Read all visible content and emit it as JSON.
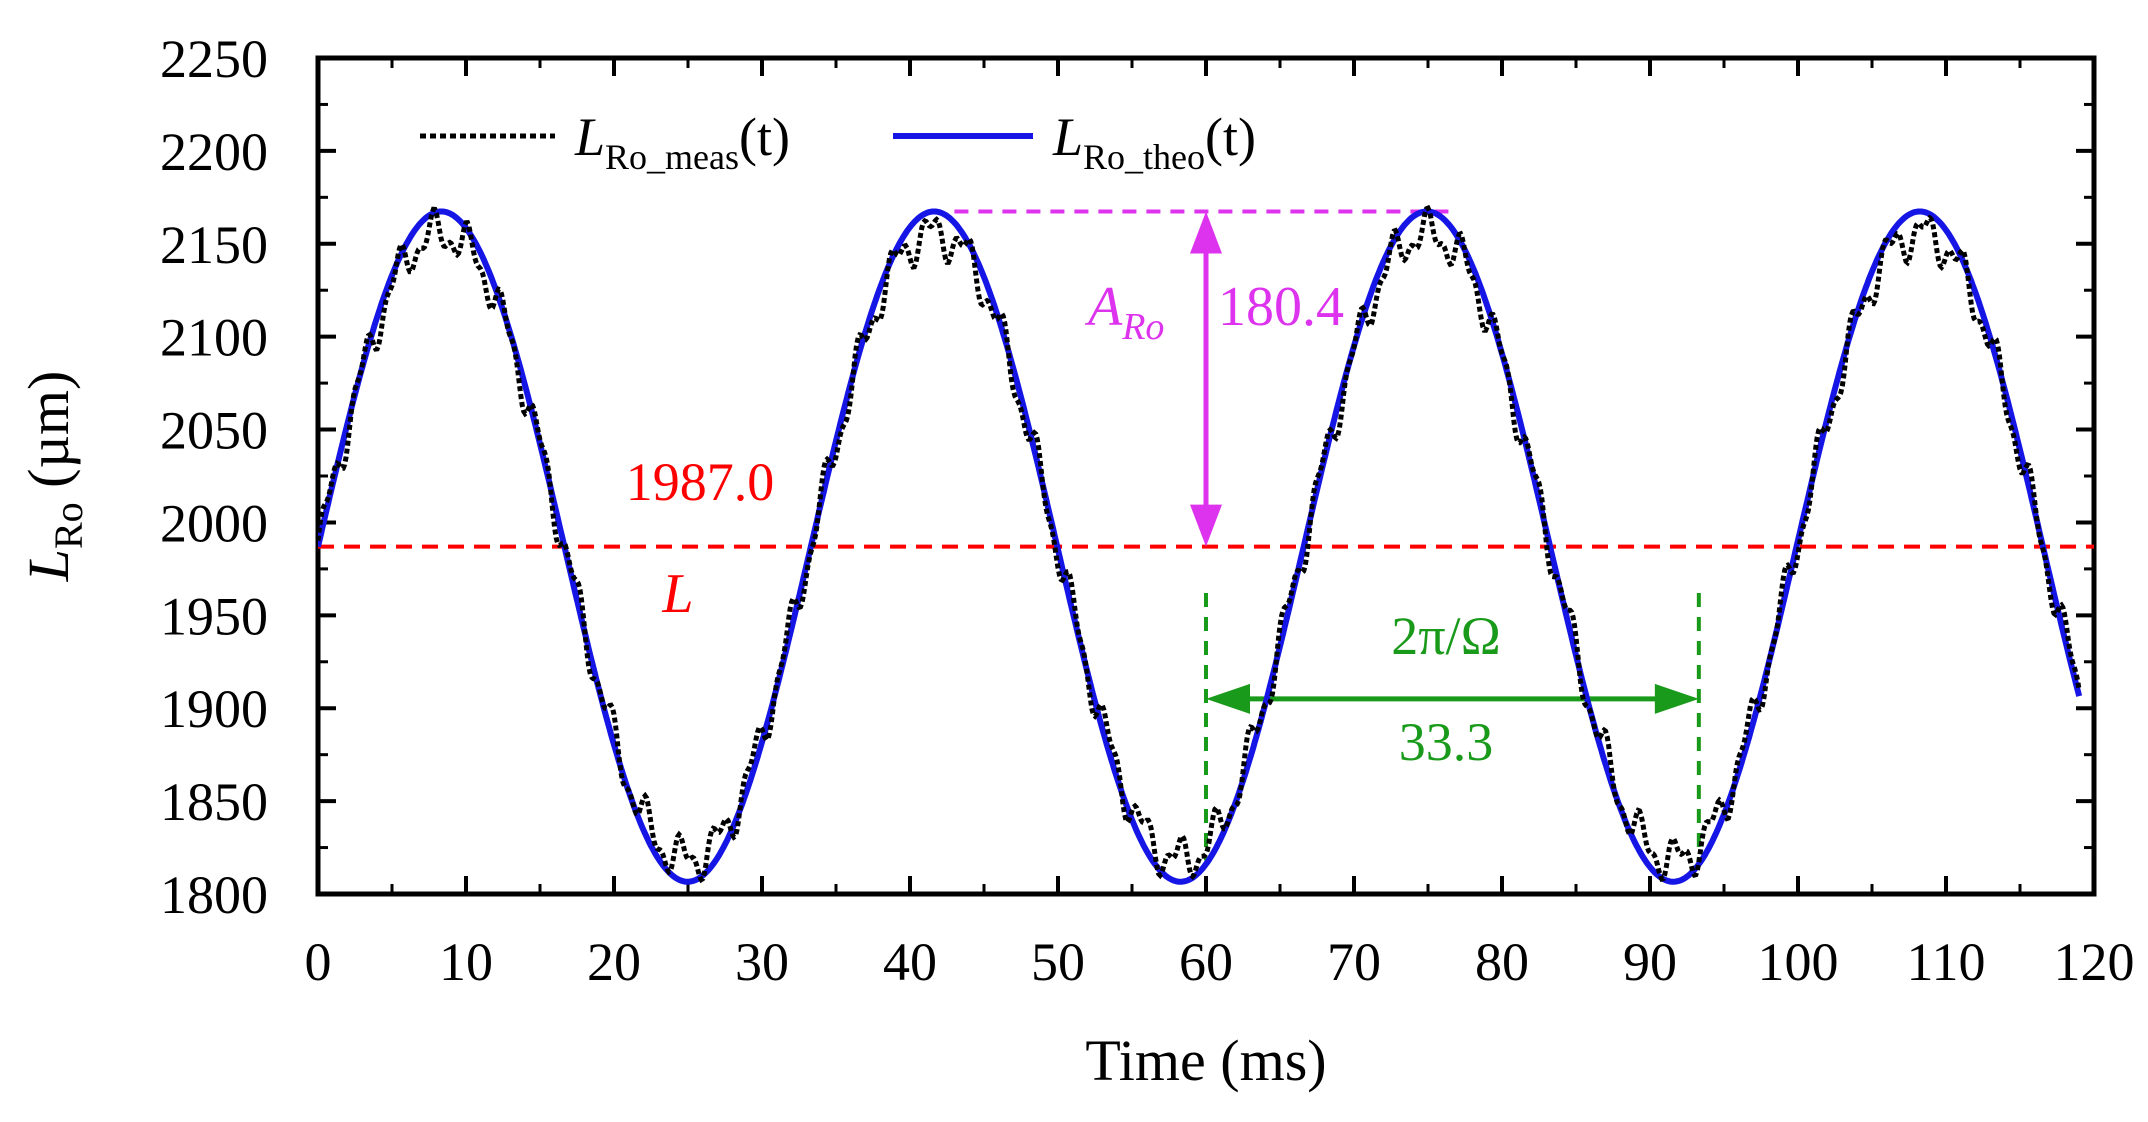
{
  "chart_data": {
    "type": "line",
    "title": "",
    "xlabel": "Time (ms)",
    "ylabel_main": "L",
    "ylabel_sub": "Ro",
    "ylabel_unit": " (µm)",
    "xlim": [
      0,
      120
    ],
    "ylim": [
      1800,
      2250
    ],
    "xticks": [
      0,
      10,
      20,
      30,
      40,
      50,
      60,
      70,
      80,
      90,
      100,
      110,
      120
    ],
    "yticks": [
      1800,
      1850,
      1900,
      1950,
      2000,
      2050,
      2100,
      2150,
      2200,
      2250
    ],
    "grid": false,
    "legend_position": "top-left",
    "series": [
      {
        "name": "L_Ro_meas(t)",
        "legend_main": "L",
        "legend_sub": "Ro_meas",
        "legend_suffix": "(t)",
        "style": "dotted",
        "color": "#000000",
        "model": "sinusoid with measurement ripple",
        "offset": 1987.0,
        "amplitude": 180.4,
        "period": 33.3,
        "x_range": [
          0,
          119
        ]
      },
      {
        "name": "L_Ro_theo(t)",
        "legend_main": "L",
        "legend_sub": "Ro_theo",
        "legend_suffix": "(t)",
        "style": "solid",
        "color": "#1515e6",
        "model": "L + A_Ro·sin(2π t / T)",
        "offset": 1987.0,
        "amplitude": 180.4,
        "period": 33.3,
        "x_range": [
          0,
          119
        ]
      }
    ],
    "annotations": {
      "mean_line": {
        "value": 1987.0,
        "value_label": "1987.0",
        "symbol": "L",
        "color": "#ff0000"
      },
      "amplitude": {
        "value_label": "180.4",
        "symbol_main": "A",
        "symbol_sub": "Ro",
        "color": "#dd33ee",
        "x": 60,
        "y_from": 1987.0,
        "y_to": 2167.4,
        "dash_x_from": 43,
        "dash_x_to": 77
      },
      "period": {
        "symbol": "2π/Ω",
        "value_label": "33.3",
        "color": "#1a9a1a",
        "x_from": 60,
        "x_to": 93.3,
        "y": 1905
      }
    }
  }
}
